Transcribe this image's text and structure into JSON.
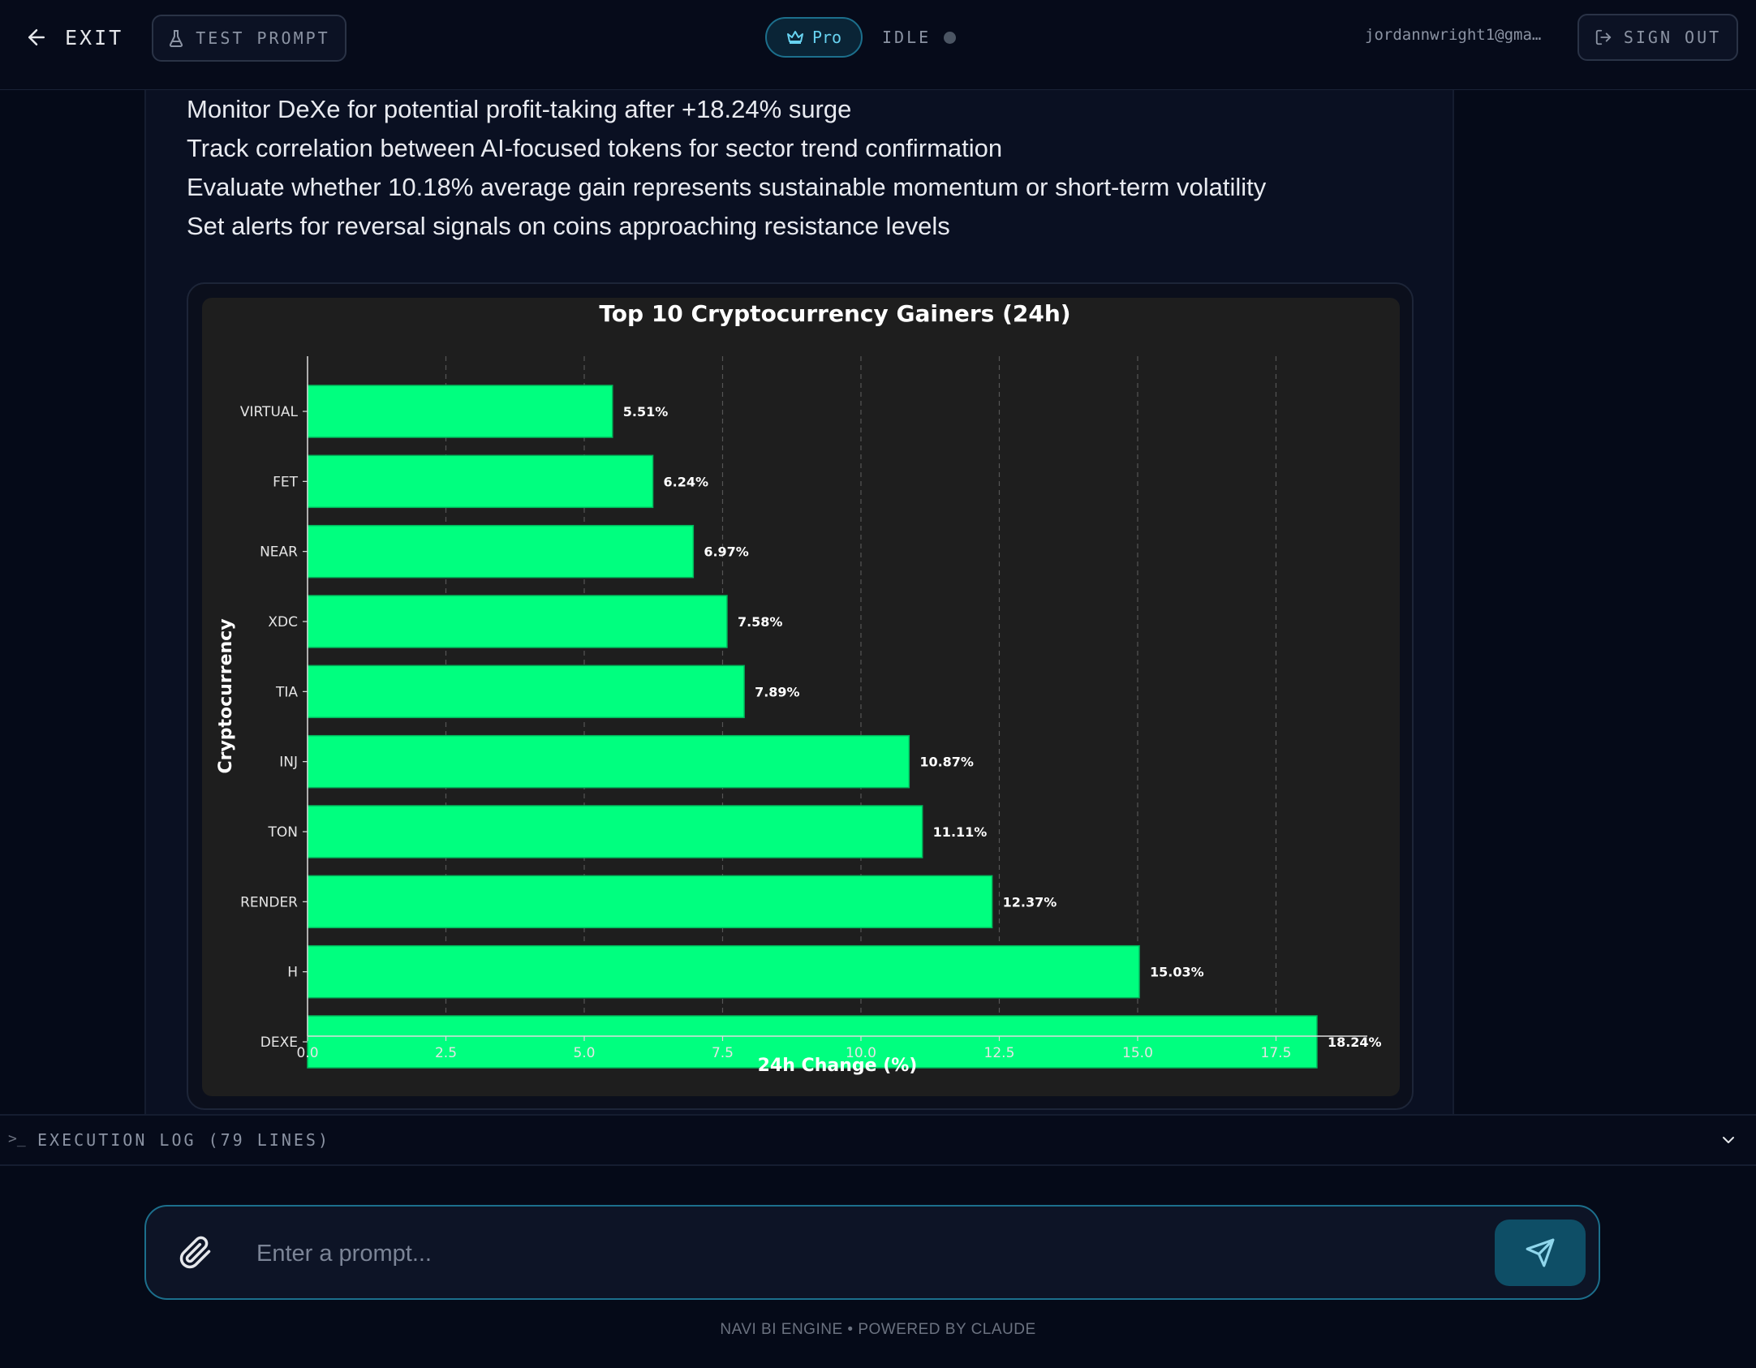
{
  "header": {
    "exit_label": "EXIT",
    "test_prompt_label": "TEST PROMPT",
    "plan_badge": "Pro",
    "status_label": "IDLE",
    "user_email": "jordannwright1@gma…",
    "sign_out_label": "SIGN OUT"
  },
  "insights": [
    "Monitor DeXe for potential profit-taking after +18.24% surge",
    "Track correlation between AI-focused tokens for sector trend confirmation",
    "Evaluate whether 10.18% average gain represents sustainable momentum or short-term volatility",
    "Set alerts for reversal signals on coins approaching resistance levels"
  ],
  "chart_data": {
    "type": "bar",
    "orientation": "horizontal",
    "title": "Top 10 Cryptocurrency Gainers (24h)",
    "xlabel": "24h Change (%)",
    "ylabel": "Cryptocurrency",
    "categories": [
      "VIRTUAL",
      "FET",
      "NEAR",
      "XDC",
      "TIA",
      "INJ",
      "TON",
      "RENDER",
      "H",
      "DEXE"
    ],
    "values": [
      5.51,
      6.24,
      6.97,
      7.58,
      7.89,
      10.87,
      11.11,
      12.37,
      15.03,
      18.24
    ],
    "value_labels": [
      "5.51%",
      "6.24%",
      "6.97%",
      "7.58%",
      "7.89%",
      "10.87%",
      "11.11%",
      "12.37%",
      "15.03%",
      "18.24%"
    ],
    "xlim": [
      0,
      19.15
    ],
    "xticks": [
      "0.0",
      "2.5",
      "5.0",
      "7.5",
      "10.0",
      "12.5",
      "15.0",
      "17.5"
    ],
    "grid": "vertical dashed",
    "bar_color": "#00ff7f",
    "background": "#1e1e1e"
  },
  "execution_log": {
    "prompt_glyph": ">_",
    "label": "EXECUTION LOG (79 LINES)"
  },
  "prompt": {
    "placeholder": "Enter a prompt..."
  },
  "footer": "NAVI BI ENGINE • POWERED BY CLAUDE",
  "colors": {
    "accent": "#1c6f8c",
    "background": "#050a18"
  }
}
